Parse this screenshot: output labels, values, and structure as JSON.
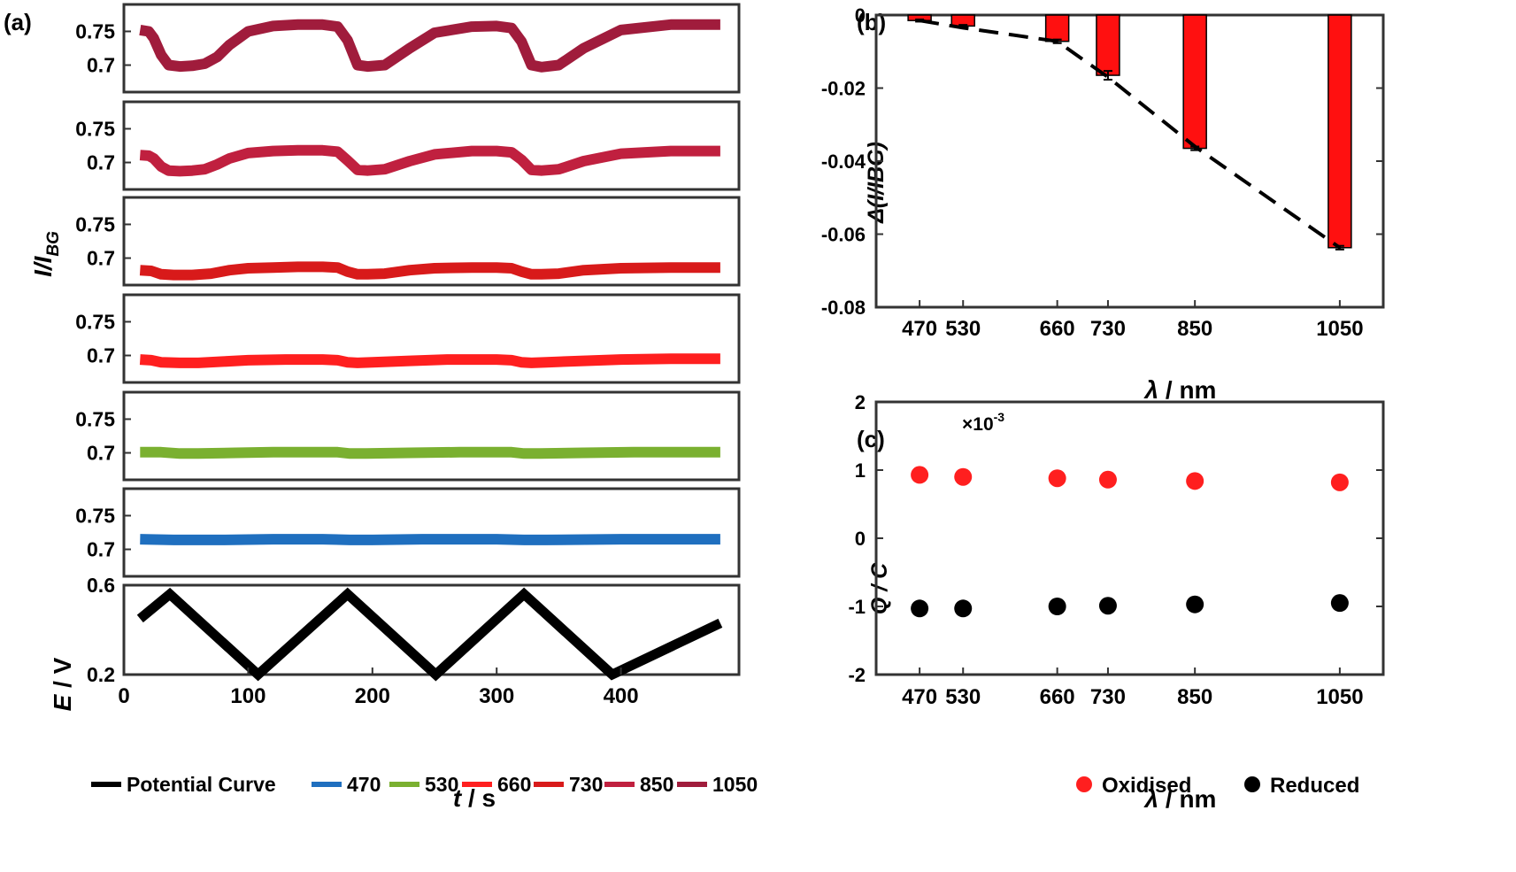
{
  "figure": {
    "labels": {
      "a": "(a)",
      "b": "(b)",
      "c": "(c)"
    }
  },
  "colors": {
    "s470": "#1f6fbf",
    "s530": "#7ab030",
    "s660": "#ff1f1f",
    "s730": "#d81a1a",
    "s850": "#c0203f",
    "s1050": "#a01c3c",
    "potential": "#000000",
    "bar": "#ff1010",
    "oxidised": "#ff1f1f",
    "reduced": "#000000"
  },
  "chart_data": [
    {
      "id": "a",
      "type": "line",
      "x_label_var": "t",
      "x_label_unit": " / s",
      "x_ticks": [
        "0",
        "100",
        "200",
        "300",
        "400"
      ],
      "xlim": [
        0,
        495
      ],
      "y_label_main": "I/I",
      "y_label_sub": "BG",
      "potential_label_var": "E",
      "potential_label_unit": " / V",
      "panels": [
        {
          "series": "1050",
          "ylim": [
            0.66,
            0.79
          ],
          "yticks": [
            "0.75",
            "0.7"
          ],
          "ytick_values": [
            0.75,
            0.7
          ],
          "x": [
            13,
            20,
            24,
            30,
            36,
            45,
            55,
            65,
            75,
            85,
            100,
            120,
            140,
            160,
            172,
            180,
            188,
            196,
            210,
            230,
            250,
            280,
            300,
            312,
            320,
            328,
            336,
            350,
            370,
            400,
            440,
            480
          ],
          "y": [
            0.752,
            0.75,
            0.74,
            0.715,
            0.7,
            0.698,
            0.699,
            0.702,
            0.712,
            0.73,
            0.75,
            0.758,
            0.76,
            0.76,
            0.757,
            0.737,
            0.7,
            0.698,
            0.7,
            0.725,
            0.748,
            0.757,
            0.758,
            0.755,
            0.735,
            0.7,
            0.697,
            0.7,
            0.725,
            0.752,
            0.76,
            0.76
          ]
        },
        {
          "series": "850",
          "ylim": [
            0.66,
            0.79
          ],
          "yticks": [
            "0.75",
            "0.7"
          ],
          "ytick_values": [
            0.75,
            0.7
          ],
          "x": [
            13,
            20,
            24,
            30,
            36,
            45,
            55,
            65,
            75,
            85,
            100,
            120,
            140,
            160,
            172,
            180,
            188,
            196,
            210,
            230,
            250,
            280,
            300,
            312,
            320,
            328,
            336,
            350,
            370,
            400,
            440,
            480
          ],
          "y": [
            0.711,
            0.71,
            0.706,
            0.694,
            0.688,
            0.687,
            0.688,
            0.69,
            0.697,
            0.706,
            0.714,
            0.717,
            0.718,
            0.718,
            0.716,
            0.703,
            0.689,
            0.688,
            0.69,
            0.702,
            0.712,
            0.717,
            0.717,
            0.715,
            0.704,
            0.689,
            0.688,
            0.69,
            0.702,
            0.713,
            0.717,
            0.717
          ]
        },
        {
          "series": "730",
          "ylim": [
            0.66,
            0.79
          ],
          "yticks": [
            "0.75",
            "0.7"
          ],
          "ytick_values": [
            0.75,
            0.7
          ],
          "x": [
            13,
            22,
            30,
            40,
            55,
            70,
            85,
            100,
            120,
            140,
            160,
            172,
            180,
            188,
            196,
            210,
            230,
            250,
            280,
            300,
            312,
            320,
            328,
            336,
            350,
            370,
            400,
            440,
            480
          ],
          "y": [
            0.682,
            0.681,
            0.676,
            0.675,
            0.675,
            0.677,
            0.682,
            0.685,
            0.686,
            0.687,
            0.687,
            0.686,
            0.68,
            0.676,
            0.676,
            0.677,
            0.682,
            0.685,
            0.686,
            0.686,
            0.685,
            0.68,
            0.676,
            0.676,
            0.677,
            0.682,
            0.685,
            0.686,
            0.686
          ]
        },
        {
          "series": "660",
          "ylim": [
            0.66,
            0.79
          ],
          "yticks": [
            "0.75",
            "0.7"
          ],
          "ytick_values": [
            0.75,
            0.7
          ],
          "x": [
            13,
            22,
            30,
            45,
            60,
            80,
            100,
            130,
            160,
            172,
            180,
            188,
            200,
            230,
            260,
            300,
            312,
            320,
            328,
            340,
            370,
            400,
            440,
            480
          ],
          "y": [
            0.694,
            0.693,
            0.69,
            0.689,
            0.689,
            0.691,
            0.693,
            0.694,
            0.694,
            0.693,
            0.69,
            0.689,
            0.69,
            0.692,
            0.694,
            0.694,
            0.693,
            0.69,
            0.689,
            0.69,
            0.692,
            0.694,
            0.695,
            0.695
          ]
        },
        {
          "series": "530",
          "ylim": [
            0.66,
            0.79
          ],
          "yticks": [
            "0.75",
            "0.7"
          ],
          "ytick_values": [
            0.75,
            0.7
          ],
          "x": [
            13,
            30,
            45,
            60,
            90,
            120,
            160,
            172,
            182,
            195,
            230,
            270,
            300,
            312,
            322,
            335,
            370,
            410,
            480
          ],
          "y": [
            0.701,
            0.701,
            0.699,
            0.699,
            0.7,
            0.701,
            0.701,
            0.701,
            0.699,
            0.699,
            0.7,
            0.701,
            0.701,
            0.701,
            0.699,
            0.699,
            0.7,
            0.701,
            0.701
          ]
        },
        {
          "series": "470",
          "ylim": [
            0.66,
            0.79
          ],
          "yticks": [
            "0.75",
            "0.7"
          ],
          "ytick_values": [
            0.75,
            0.7
          ],
          "x": [
            13,
            40,
            80,
            120,
            160,
            182,
            200,
            240,
            300,
            322,
            340,
            400,
            480
          ],
          "y": [
            0.715,
            0.714,
            0.714,
            0.715,
            0.715,
            0.714,
            0.714,
            0.715,
            0.715,
            0.714,
            0.714,
            0.715,
            0.715
          ]
        }
      ],
      "potential": {
        "ylim": [
          0.2,
          0.6
        ],
        "yticks": [
          "0.6",
          "0.2"
        ],
        "ytick_values": [
          0.6,
          0.2
        ],
        "x": [
          13,
          37,
          108,
          180,
          251,
          322,
          393,
          480
        ],
        "y": [
          0.45,
          0.56,
          0.2,
          0.56,
          0.2,
          0.56,
          0.2,
          0.43
        ]
      },
      "legend": [
        {
          "name": "Potential Curve",
          "color": "#000000"
        },
        {
          "name": "470",
          "color": "#1f6fbf"
        },
        {
          "name": "530",
          "color": "#7ab030"
        },
        {
          "name": "660",
          "color": "#ff1f1f"
        },
        {
          "name": "730",
          "color": "#d81a1a"
        },
        {
          "name": "850",
          "color": "#c0203f"
        },
        {
          "name": "1050",
          "color": "#a01c3c"
        }
      ]
    },
    {
      "id": "b",
      "type": "bar",
      "x": [
        470,
        530,
        660,
        730,
        850,
        1050
      ],
      "categories": [
        "470",
        "530",
        "660",
        "730",
        "850",
        "1050"
      ],
      "values": [
        -0.0015,
        -0.003,
        -0.0072,
        -0.0165,
        -0.0365,
        -0.0637
      ],
      "errors": [
        0.0003,
        0.0003,
        0.0005,
        0.0012,
        0.0005,
        0.0005
      ],
      "fit_line": {
        "x": [
          470,
          530,
          660,
          730,
          850,
          1050
        ],
        "y": [
          -0.0015,
          -0.0035,
          -0.0072,
          -0.017,
          -0.036,
          -0.0637
        ]
      },
      "xlim": [
        410,
        1110
      ],
      "ylim": [
        -0.08,
        0
      ],
      "yticks": [
        "0",
        "-0.02",
        "-0.04",
        "-0.06",
        "-0.08"
      ],
      "ytick_values": [
        0,
        -0.02,
        -0.04,
        -0.06,
        -0.08
      ],
      "xlabel_var": "λ",
      "xlabel_unit": " / nm",
      "ylabel": "Δ(I/IBG)"
    },
    {
      "id": "c",
      "type": "scatter",
      "x": [
        470,
        530,
        660,
        730,
        850,
        1050
      ],
      "categories": [
        "470",
        "530",
        "660",
        "730",
        "850",
        "1050"
      ],
      "series": [
        {
          "name": "Oxidised",
          "values": [
            0.93,
            0.9,
            0.88,
            0.86,
            0.84,
            0.82
          ]
        },
        {
          "name": "Reduced",
          "values": [
            -1.03,
            -1.03,
            -1.0,
            -0.99,
            -0.97,
            -0.95
          ]
        }
      ],
      "xlim": [
        410,
        1110
      ],
      "ylim": [
        -2,
        2
      ],
      "yticks": [
        "2",
        "1",
        "0",
        "-1",
        "-2"
      ],
      "ytick_values": [
        2,
        1,
        0,
        -1,
        -2
      ],
      "multiplier": "×10",
      "multiplier_exp": "-3",
      "xlabel_var": "λ",
      "xlabel_unit": " / nm",
      "ylabel": "Q / C"
    }
  ]
}
